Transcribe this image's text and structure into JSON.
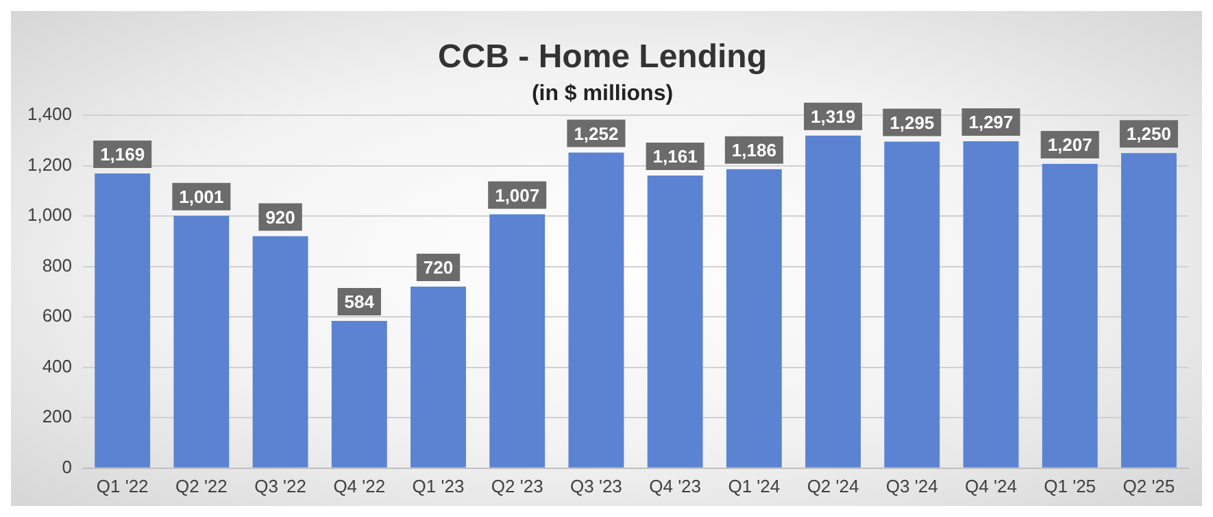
{
  "chart_data": {
    "type": "bar",
    "title": "CCB - Home Lending",
    "subtitle": "(in $ millions)",
    "categories": [
      "Q1 '22",
      "Q2 '22",
      "Q3 '22",
      "Q4 '22",
      "Q1 '23",
      "Q2 '23",
      "Q3 '23",
      "Q4 '23",
      "Q1 '24",
      "Q2 '24",
      "Q3 '24",
      "Q4 '24",
      "Q1 '25",
      "Q2 '25"
    ],
    "values": [
      1169,
      1001,
      920,
      584,
      720,
      1007,
      1252,
      1161,
      1186,
      1319,
      1295,
      1297,
      1207,
      1250
    ],
    "value_labels": [
      "1,169",
      "1,001",
      "920",
      "584",
      "720",
      "1,007",
      "1,252",
      "1,161",
      "1,186",
      "1,319",
      "1,295",
      "1,297",
      "1,207",
      "1,250"
    ],
    "color": "#5b83d1",
    "ylim": [
      0,
      1400
    ],
    "yticks": [
      {
        "value": 0,
        "label": "0"
      },
      {
        "value": 200,
        "label": "200"
      },
      {
        "value": 400,
        "label": "400"
      },
      {
        "value": 600,
        "label": "600"
      },
      {
        "value": 800,
        "label": "800"
      },
      {
        "value": 1000,
        "label": "1,000"
      },
      {
        "value": 1200,
        "label": "1,200"
      },
      {
        "value": 1400,
        "label": "1,400"
      }
    ],
    "grid": "y",
    "legend": false
  }
}
